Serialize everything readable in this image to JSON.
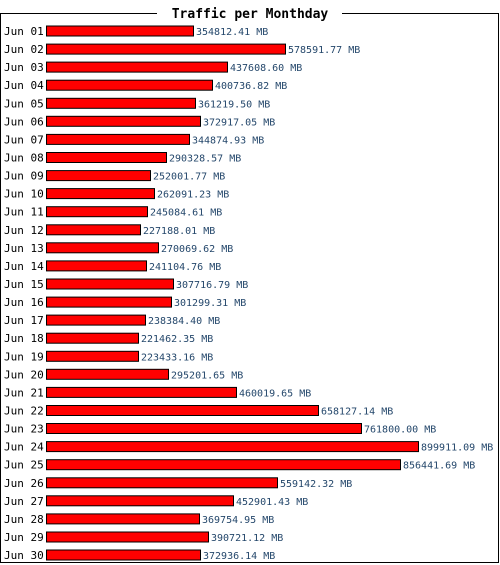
{
  "chart_data": {
    "type": "bar",
    "orientation": "horizontal",
    "title": "Traffic per Monthday",
    "unit": "MB",
    "categories": [
      "Jun 01",
      "Jun 02",
      "Jun 03",
      "Jun 04",
      "Jun 05",
      "Jun 06",
      "Jun 07",
      "Jun 08",
      "Jun 09",
      "Jun 10",
      "Jun 11",
      "Jun 12",
      "Jun 13",
      "Jun 14",
      "Jun 15",
      "Jun 16",
      "Jun 17",
      "Jun 18",
      "Jun 19",
      "Jun 20",
      "Jun 21",
      "Jun 22",
      "Jun 23",
      "Jun 24",
      "Jun 25",
      "Jun 26",
      "Jun 27",
      "Jun 28",
      "Jun 29",
      "Jun 30"
    ],
    "values": [
      354812.41,
      578591.77,
      437608.6,
      400736.82,
      361219.5,
      372917.05,
      344874.93,
      290328.57,
      252001.77,
      262091.23,
      245084.61,
      227188.01,
      270069.62,
      241104.76,
      307716.79,
      301299.31,
      238384.4,
      221462.35,
      223433.16,
      295201.65,
      460019.65,
      658127.14,
      761800.0,
      899911.09,
      856441.69,
      559142.32,
      452901.43,
      369754.95,
      390721.12,
      372936.14
    ],
    "value_labels": [
      "354812.41 MB",
      "578591.77 MB",
      "437608.60 MB",
      "400736.82 MB",
      "361219.50 MB",
      "372917.05 MB",
      "344874.93 MB",
      "290328.57 MB",
      "252001.77 MB",
      "262091.23 MB",
      "245084.61 MB",
      "227188.01 MB",
      "270069.62 MB",
      "241104.76 MB",
      "307716.79 MB",
      "301299.31 MB",
      "238384.40 MB",
      "221462.35 MB",
      "223433.16 MB",
      "295201.65 MB",
      "460019.65 MB",
      "658127.14 MB",
      "761800.00 MB",
      "899911.09 MB",
      "856441.69 MB",
      "559142.32 MB",
      "452901.43 MB",
      "369754.95 MB",
      "390721.12 MB",
      "372936.14 MB"
    ],
    "xlim": [
      0,
      899911.09
    ],
    "grid": false,
    "legend": "none"
  },
  "colors": {
    "bar_fill": "#ff0000",
    "bar_stroke": "#000000",
    "label_text": "#24476b",
    "frame": "#000000",
    "background": "#ffffff"
  }
}
